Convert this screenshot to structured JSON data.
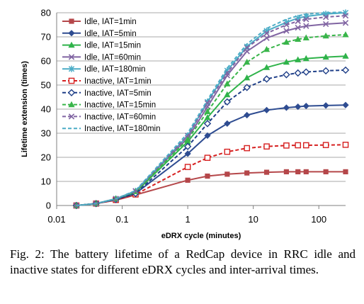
{
  "chart_data": {
    "type": "line",
    "x_scale": "log",
    "xlabel": "eDRX cycle (minutes)",
    "ylabel": "Lifetime extension (times)",
    "xlim": [
      0.01,
      256
    ],
    "ylim": [
      0,
      80
    ],
    "x_ticks": [
      0.01,
      0.1,
      1,
      10,
      100
    ],
    "x_tick_labels": [
      "0.01",
      "0.1",
      "1",
      "10",
      "100"
    ],
    "y_ticks": [
      0,
      10,
      20,
      30,
      40,
      50,
      60,
      70,
      80
    ],
    "y_tick_labels": [
      "0",
      "10",
      "20",
      "30",
      "40",
      "50",
      "60",
      "70",
      "80"
    ],
    "grid": true,
    "legend_position": "top-left",
    "x": [
      0.02,
      0.04,
      0.08,
      0.16,
      1,
      2,
      4,
      8,
      16,
      32,
      48,
      64,
      128,
      256
    ],
    "series": [
      {
        "name": "Idle, IAT=1min",
        "color": "#b5474a",
        "dash": "solid",
        "marker": "square",
        "values": [
          0,
          0.8,
          2.2,
          4.4,
          10.5,
          12.2,
          13.0,
          13.5,
          13.8,
          14.0,
          14.0,
          14.0,
          14.0,
          14.0
        ]
      },
      {
        "name": "Idle, IAT=5min",
        "color": "#2e4c91",
        "dash": "solid",
        "marker": "diamond",
        "values": [
          0,
          0.8,
          2.5,
          5.0,
          21.5,
          29.0,
          34.0,
          37.5,
          39.6,
          40.6,
          41.0,
          41.3,
          41.5,
          41.7
        ]
      },
      {
        "name": "Idle, IAT=15min",
        "color": "#2fb34a",
        "dash": "solid",
        "marker": "triangle",
        "values": [
          0,
          0.8,
          2.8,
          5.5,
          26.5,
          36.5,
          46.0,
          53.0,
          57.3,
          59.5,
          60.5,
          61.0,
          61.6,
          62.0
        ]
      },
      {
        "name": "Idle, IAT=60min",
        "color": "#8064a2",
        "dash": "solid",
        "marker": "cross",
        "values": [
          0,
          0.8,
          2.8,
          6.0,
          28.0,
          41.0,
          54.0,
          64.0,
          69.5,
          72.5,
          73.8,
          74.5,
          75.3,
          75.8
        ]
      },
      {
        "name": "Idle, IAT=180min",
        "color": "#4bacc6",
        "dash": "solid",
        "marker": "star",
        "values": [
          0,
          0.8,
          2.8,
          6.0,
          29.0,
          43.0,
          56.0,
          66.0,
          72.5,
          76.0,
          77.8,
          78.5,
          79.5,
          80.0
        ]
      },
      {
        "name": "Inactive, IAT=1min",
        "color": "#d62020",
        "dash": "dashed",
        "marker": "square-open",
        "values": [
          0,
          0.8,
          2.3,
          4.6,
          16.0,
          19.8,
          22.3,
          23.8,
          24.5,
          24.9,
          25.0,
          25.0,
          25.1,
          25.2
        ]
      },
      {
        "name": "Inactive, IAT=5min",
        "color": "#1f3f88",
        "dash": "dashed",
        "marker": "diamond-open",
        "values": [
          0,
          0.8,
          2.5,
          5.0,
          24.5,
          34.0,
          43.0,
          49.0,
          52.5,
          54.3,
          55.0,
          55.4,
          55.9,
          56.2
        ]
      },
      {
        "name": "Inactive, IAT=15min",
        "color": "#39b54a",
        "dash": "dashed",
        "marker": "triangle",
        "values": [
          0,
          0.8,
          2.8,
          5.8,
          27.5,
          39.0,
          50.5,
          59.5,
          64.8,
          67.8,
          69.0,
          69.6,
          70.4,
          70.9
        ]
      },
      {
        "name": "Inactive, IAT=60min",
        "color": "#8064a2",
        "dash": "dashed",
        "marker": "cross",
        "values": [
          0,
          0.8,
          2.8,
          6.0,
          29.0,
          42.5,
          55.0,
          65.5,
          71.5,
          75.0,
          76.5,
          77.3,
          78.2,
          78.8
        ]
      },
      {
        "name": "Inactive, IAT=180min",
        "color": "#4bacc6",
        "dash": "dashed",
        "marker": "none",
        "values": [
          0,
          0.8,
          2.8,
          6.2,
          30.0,
          43.8,
          57.0,
          67.0,
          73.5,
          77.3,
          78.7,
          79.4,
          80.0,
          80.3
        ]
      }
    ]
  },
  "caption": "Fig. 2: The battery lifetime of a RedCap device in RRC idle and inactive states for different eDRX cycles and inter-arrival times."
}
